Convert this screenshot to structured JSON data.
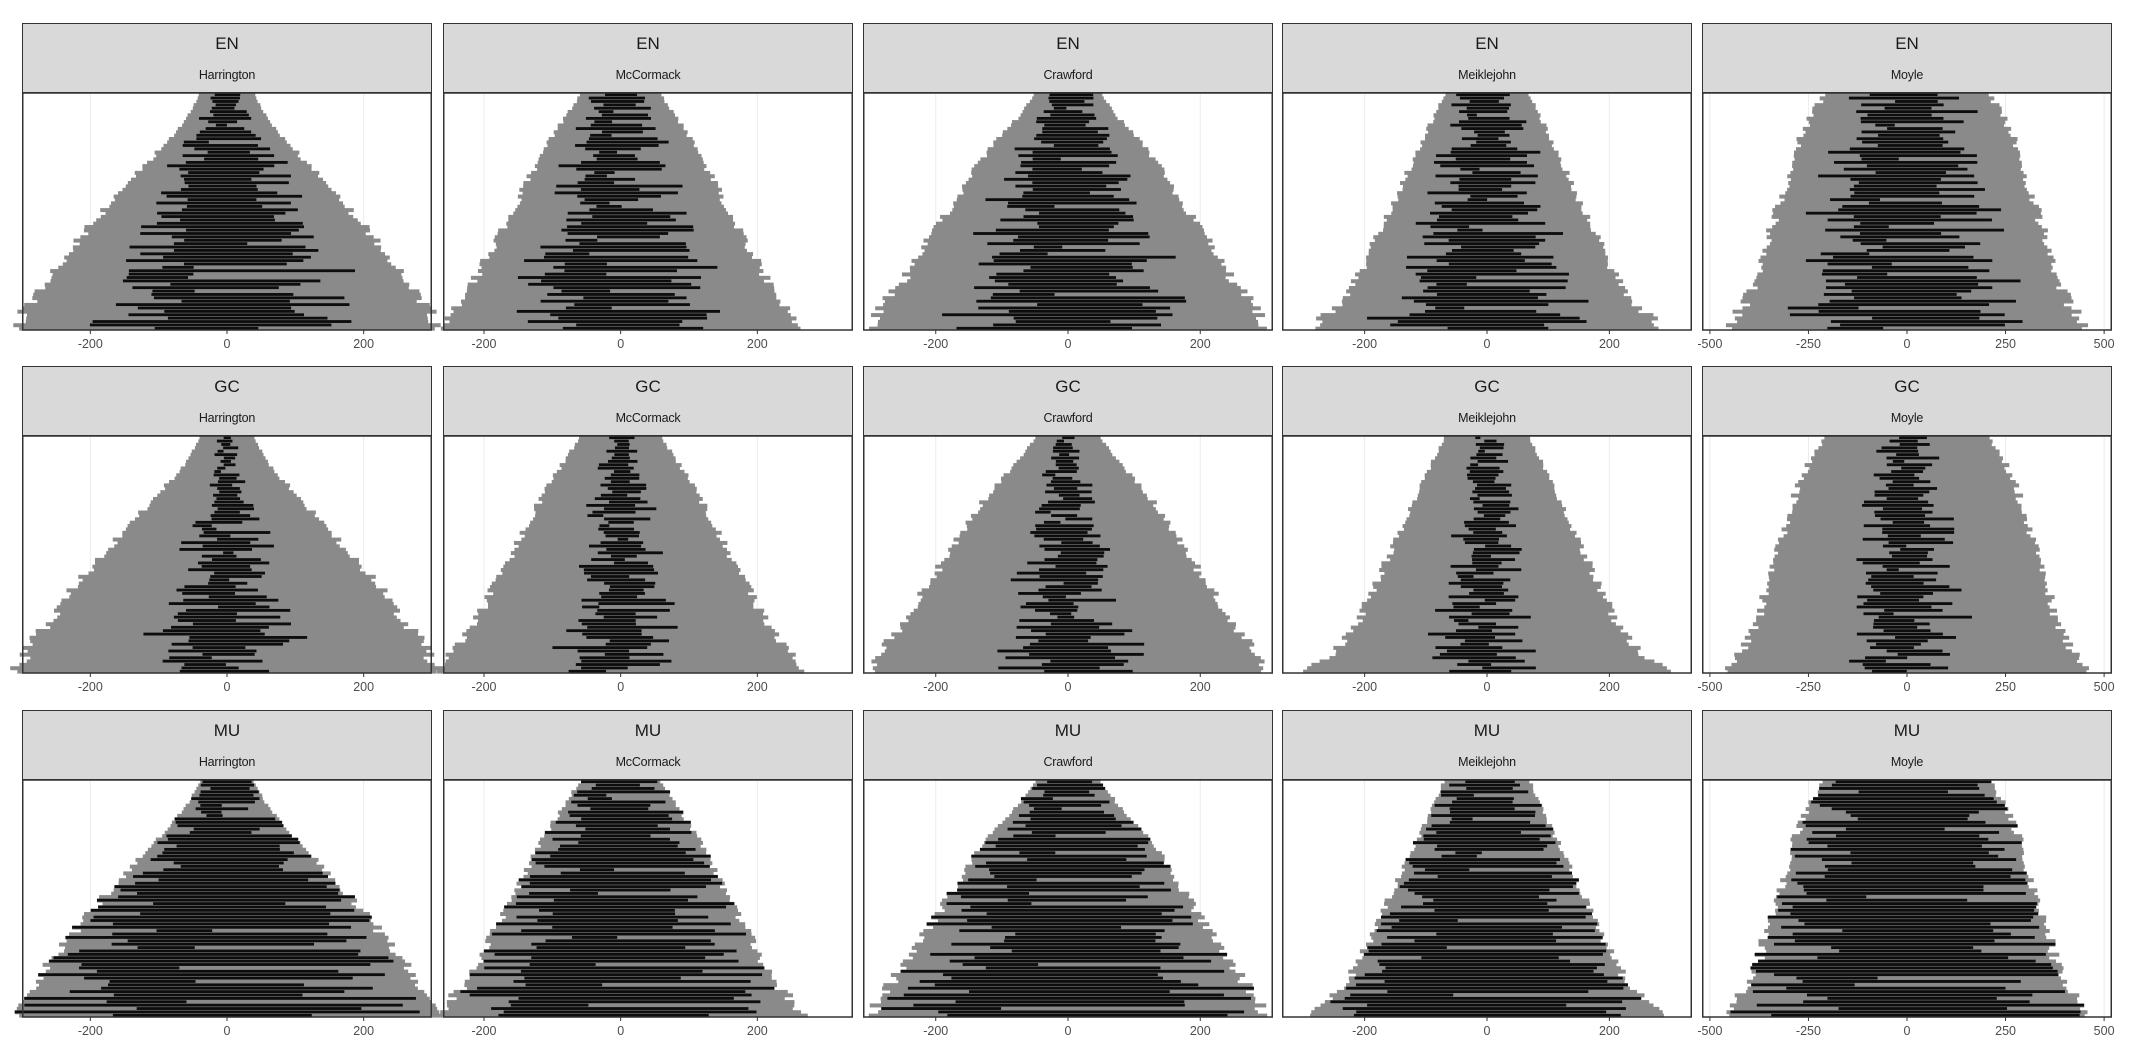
{
  "chart_data": {
    "type": "faceted-bar",
    "rows": [
      "EN",
      "GC",
      "MU"
    ],
    "columns": [
      "Harrington",
      "McCormack",
      "Crawford",
      "Meiklejohn",
      "Moyle"
    ],
    "colors": {
      "outer": "#8a8a8a",
      "inner": "#0d0d0d",
      "strip_fill": "#d9d9d9",
      "grid": "#ebebeb",
      "border": "#333333"
    },
    "x_axes": {
      "Harrington": {
        "xlim": [
          -300,
          300
        ],
        "ticks": [
          -200,
          0,
          200
        ],
        "tick_labels": [
          "-200",
          "0",
          "200"
        ]
      },
      "McCormack": {
        "xlim": [
          -260,
          340
        ],
        "ticks": [
          -200,
          0,
          200
        ],
        "tick_labels": [
          "-200",
          "0",
          "200"
        ]
      },
      "Crawford": {
        "xlim": [
          -310,
          310
        ],
        "ticks": [
          -200,
          0,
          200
        ],
        "tick_labels": [
          "-200",
          "0",
          "200"
        ]
      },
      "Meiklejohn": {
        "xlim": [
          -335,
          335
        ],
        "ticks": [
          -200,
          0,
          200
        ],
        "tick_labels": [
          "-200",
          "0",
          "200"
        ]
      },
      "Moyle": {
        "xlim": [
          -520,
          520
        ],
        "ticks": [
          -500,
          -250,
          0,
          250,
          500
        ],
        "tick_labels": [
          "-500",
          "-250",
          "0",
          "250",
          "500"
        ]
      }
    },
    "outer_halfwidth_by_level": {
      "Harrington": [
        40,
        60,
        95,
        130,
        165,
        200,
        230,
        260,
        290,
        310
      ],
      "McCormack": [
        60,
        85,
        110,
        130,
        150,
        170,
        190,
        210,
        235,
        270
      ],
      "Crawford": [
        50,
        80,
        115,
        145,
        170,
        195,
        220,
        245,
        275,
        300
      ],
      "Meiklejohn": [
        70,
        90,
        110,
        130,
        150,
        170,
        190,
        210,
        240,
        290
      ],
      "Moyle": [
        210,
        250,
        280,
        300,
        320,
        340,
        360,
        380,
        410,
        460
      ]
    },
    "inner_fill_fraction_by_row": {
      "EN": 0.45,
      "GC": 0.22,
      "MU": 0.82
    }
  }
}
